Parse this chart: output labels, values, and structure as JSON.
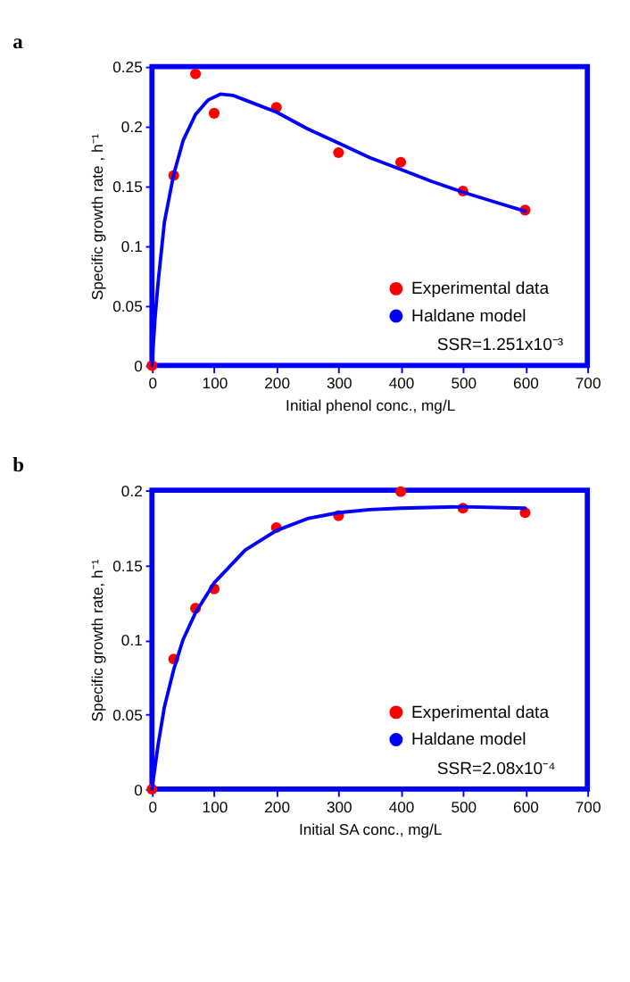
{
  "chart_data": [
    {
      "type": "scatter",
      "title": "a",
      "xlabel": "Initial phenol conc., mg/L",
      "ylabel": "Specific growth rate , h⁻¹",
      "annotations": [
        "SSR=1.251x10⁻³"
      ],
      "xlim": [
        0,
        700
      ],
      "xticks": [
        0,
        100,
        200,
        300,
        400,
        500,
        600,
        700
      ],
      "ylim": [
        0,
        0.25
      ],
      "yticks": [
        0,
        0.05,
        0.1,
        0.15,
        0.2,
        0.25
      ],
      "grid": false,
      "legend": "bottom right",
      "series": [
        {
          "name": "Experimental data",
          "type": "scatter",
          "marker": "circle",
          "color": "#ff0000",
          "x": [
            0,
            35,
            70,
            100,
            200,
            300,
            400,
            500,
            600
          ],
          "values": [
            0,
            0.159,
            0.244,
            0.211,
            0.216,
            0.178,
            0.17,
            0.146,
            0.13
          ]
        },
        {
          "name": "Haldane model",
          "type": "line",
          "color": "#0000ff",
          "x": [
            0,
            5,
            10,
            20,
            35,
            50,
            70,
            90,
            110,
            130,
            150,
            200,
            250,
            300,
            350,
            400,
            450,
            500,
            550,
            600
          ],
          "values": [
            0,
            0.04,
            0.07,
            0.12,
            0.16,
            0.188,
            0.21,
            0.222,
            0.227,
            0.226,
            0.222,
            0.212,
            0.198,
            0.186,
            0.174,
            0.164,
            0.154,
            0.145,
            0.137,
            0.129
          ]
        }
      ]
    },
    {
      "type": "scatter",
      "title": "b",
      "xlabel": "Initial SA conc., mg/L",
      "ylabel": "Specific growth rate, h⁻¹",
      "annotations": [
        "SSR=2.08x10⁻⁴"
      ],
      "xlim": [
        0,
        700
      ],
      "xticks": [
        0,
        100,
        200,
        300,
        400,
        500,
        600,
        700
      ],
      "ylim": [
        0,
        0.2
      ],
      "yticks": [
        0,
        0.05,
        0.1,
        0.15,
        0.2
      ],
      "grid": false,
      "legend": "bottom right",
      "series": [
        {
          "name": "Experimental data",
          "type": "scatter",
          "marker": "circle",
          "color": "#ff0000",
          "x": [
            0,
            35,
            70,
            100,
            200,
            300,
            400,
            500,
            600
          ],
          "values": [
            0,
            0.087,
            0.121,
            0.134,
            0.175,
            0.183,
            0.199,
            0.188,
            0.185
          ]
        },
        {
          "name": "Haldane model",
          "type": "line",
          "color": "#0000ff",
          "x": [
            0,
            10,
            20,
            35,
            50,
            70,
            100,
            150,
            200,
            250,
            300,
            350,
            400,
            500,
            600
          ],
          "values": [
            0,
            0.03,
            0.055,
            0.08,
            0.1,
            0.118,
            0.138,
            0.16,
            0.173,
            0.181,
            0.185,
            0.187,
            0.188,
            0.189,
            0.188
          ]
        }
      ]
    }
  ]
}
